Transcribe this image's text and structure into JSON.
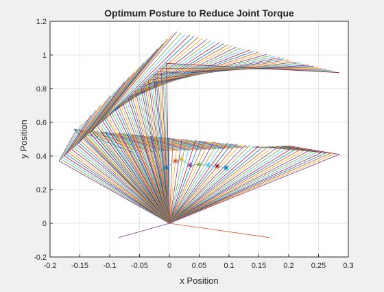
{
  "chart_data": {
    "type": "line",
    "title": "Optimum Posture to Reduce Joint Torque",
    "xlabel": "x Position",
    "ylabel": "y Position",
    "xlim": [
      -0.2,
      0.3
    ],
    "ylim": [
      -0.2,
      1.2
    ],
    "grid": true,
    "x_ticks": [
      "-0.2",
      "-0.15",
      "-0.1",
      "-0.05",
      "0",
      "0.05",
      "0.1",
      "0.15",
      "0.2",
      "0.25",
      "0.3"
    ],
    "y_ticks": [
      "-0.2",
      "0",
      "0.2",
      "0.4",
      "0.6",
      "0.8",
      "1",
      "1.2"
    ],
    "origin": [
      0,
      0
    ],
    "postures_family_A": {
      "count": 60,
      "elbow_start": [
        -0.185,
        0.37
      ],
      "elbow_end": [
        -0.005,
        0.95
      ],
      "wrist_start": [
        -0.155,
        0.56
      ],
      "wrist_end": [
        0.285,
        0.895
      ],
      "wrist_via_top": [
        0.01,
        1.14
      ]
    },
    "postures_family_B": {
      "count": 60,
      "elbow_start": [
        -0.16,
        0.56
      ],
      "elbow_end": [
        0.285,
        0.41
      ],
      "wrist_start": [
        -0.06,
        0.42
      ],
      "wrist_end": [
        0.2,
        0.46
      ]
    },
    "outlier_segments": [
      {
        "from": [
          0,
          0
        ],
        "to": [
          -0.085,
          -0.085
        ]
      },
      {
        "from": [
          0,
          0
        ],
        "to": [
          0.168,
          -0.085
        ]
      }
    ],
    "cog_trace": [
      [
        -0.005,
        0.33
      ],
      [
        0.01,
        0.37
      ],
      [
        0.02,
        0.38
      ],
      [
        0.035,
        0.345
      ],
      [
        0.05,
        0.35
      ],
      [
        0.065,
        0.345
      ],
      [
        0.08,
        0.34
      ],
      [
        0.095,
        0.33
      ]
    ],
    "series_colors": [
      "#0072BD",
      "#D95319",
      "#EDB120",
      "#7E2F8E",
      "#77AC30",
      "#4DBEEE",
      "#A2142F"
    ]
  }
}
